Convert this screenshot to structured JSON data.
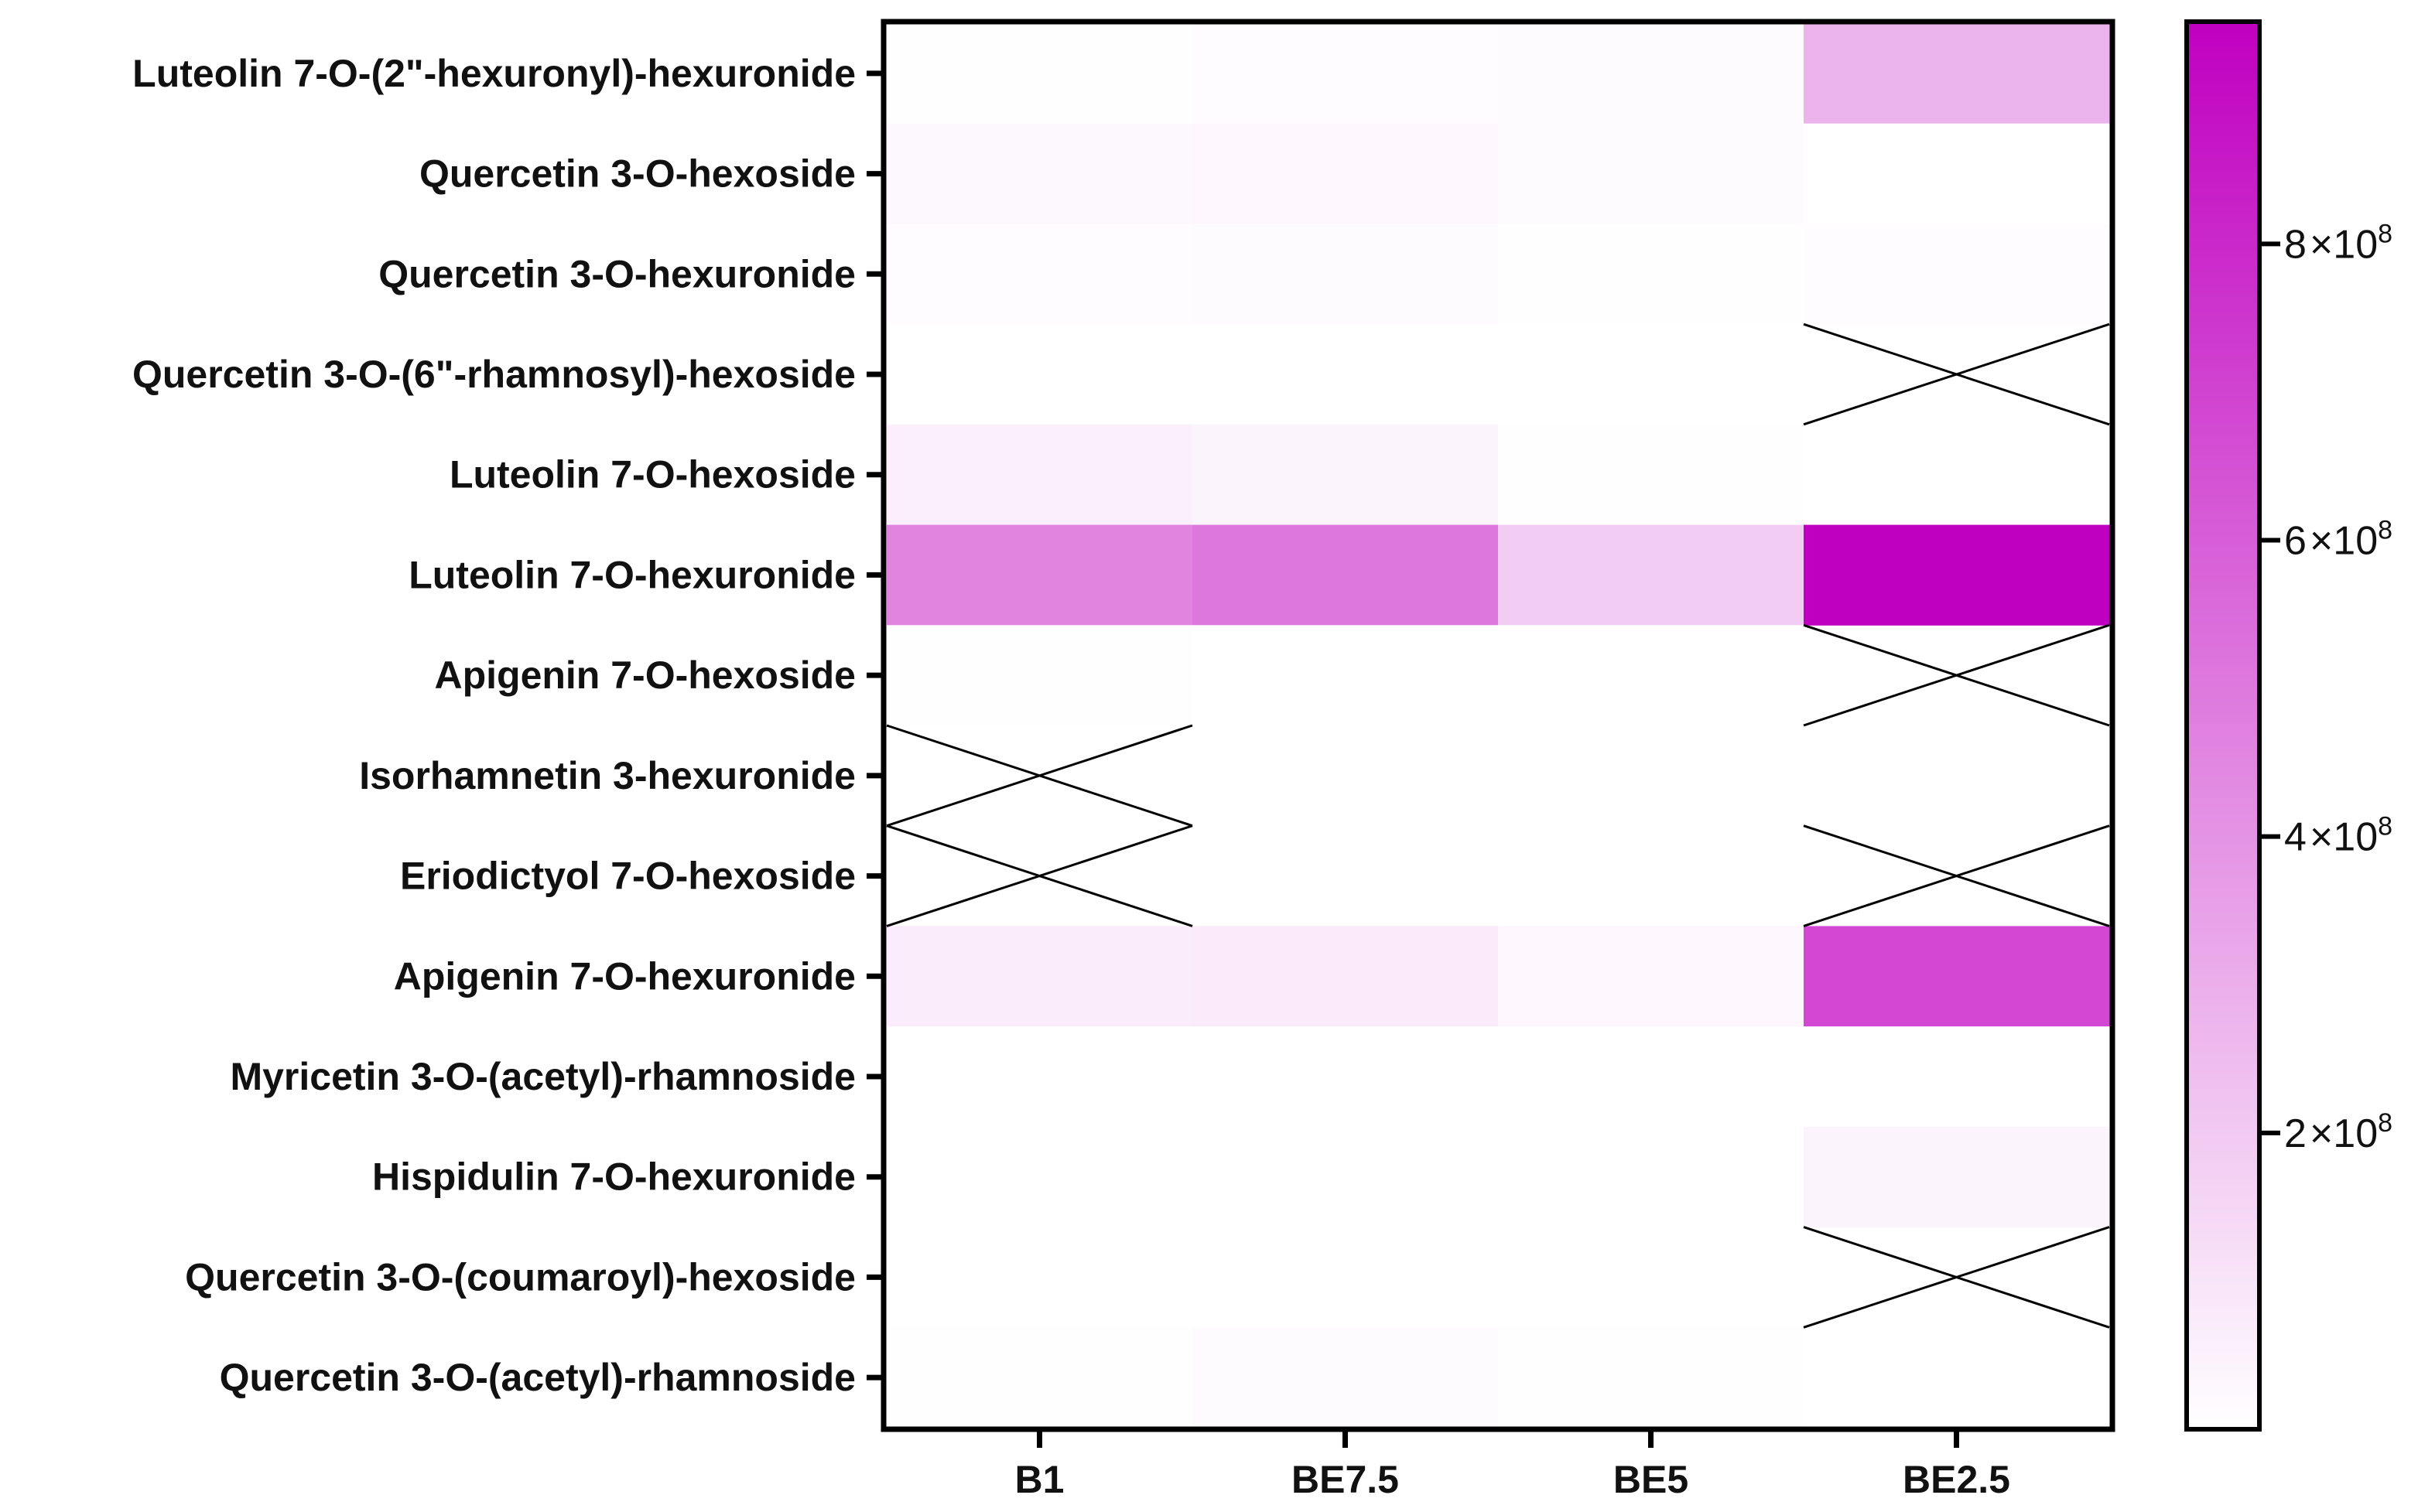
{
  "chart_data": {
    "type": "heatmap",
    "title": "",
    "xlabel": "",
    "ylabel": "",
    "columns": [
      "B1",
      "BE7.5",
      "BE5",
      "BE2.5"
    ],
    "rows": [
      "Luteolin 7-O-(2\"-hexuronyl)-hexuronide",
      "Quercetin 3-O-hexoside",
      "Quercetin 3-O-hexuronide",
      "Quercetin 3-O-(6\"-rhamnosyl)-hexoside",
      "Luteolin 7-O-hexoside",
      "Luteolin 7-O-hexuronide",
      "Apigenin 7-O-hexoside",
      "Isorhamnetin 3-hexuronide",
      "Eriodictyol 7-O-hexoside",
      "Apigenin 7-O-hexuronide",
      "Myricetin 3-O-(acetyl)-rhamnoside",
      "Hispidulin 7-O-hexuronide",
      "Quercetin 3-O-(coumaroyl)-hexoside",
      "Quercetin 3-O-(acetyl)-rhamnoside"
    ],
    "values": [
      [
        5000000.0,
        10000000.0,
        15000000.0,
        280000000.0
      ],
      [
        25000000.0,
        30000000.0,
        15000000.0,
        0.0
      ],
      [
        10000000.0,
        15000000.0,
        5000000.0,
        10000000.0
      ],
      [
        0.0,
        0.0,
        0.0,
        null
      ],
      [
        60000000.0,
        40000000.0,
        5000000.0,
        0.0
      ],
      [
        460000000.0,
        510000000.0,
        190000000.0,
        950000000.0
      ],
      [
        5000000.0,
        0.0,
        0.0,
        null
      ],
      [
        null,
        0.0,
        0.0,
        0.0
      ],
      [
        null,
        0.0,
        0.0,
        null
      ],
      [
        70000000.0,
        80000000.0,
        30000000.0,
        680000000.0
      ],
      [
        0.0,
        0.0,
        0.0,
        0.0
      ],
      [
        0.0,
        0.0,
        0.0,
        40000000.0
      ],
      [
        0.0,
        0.0,
        0.0,
        null
      ],
      [
        5000000.0,
        15000000.0,
        5000000.0,
        0.0
      ]
    ],
    "color_scale": {
      "min": 0,
      "max": 950000000.0,
      "low_color": "#ffffff",
      "high_color": "#c000c0"
    },
    "colorbar": {
      "ticks": [
        200000000.0,
        400000000.0,
        600000000.0,
        800000000.0
      ],
      "tick_mantissas": [
        "2",
        "4",
        "6",
        "8"
      ],
      "tick_times": "×10",
      "tick_exponent": "8"
    },
    "missing_marker": "X",
    "grid": false
  }
}
